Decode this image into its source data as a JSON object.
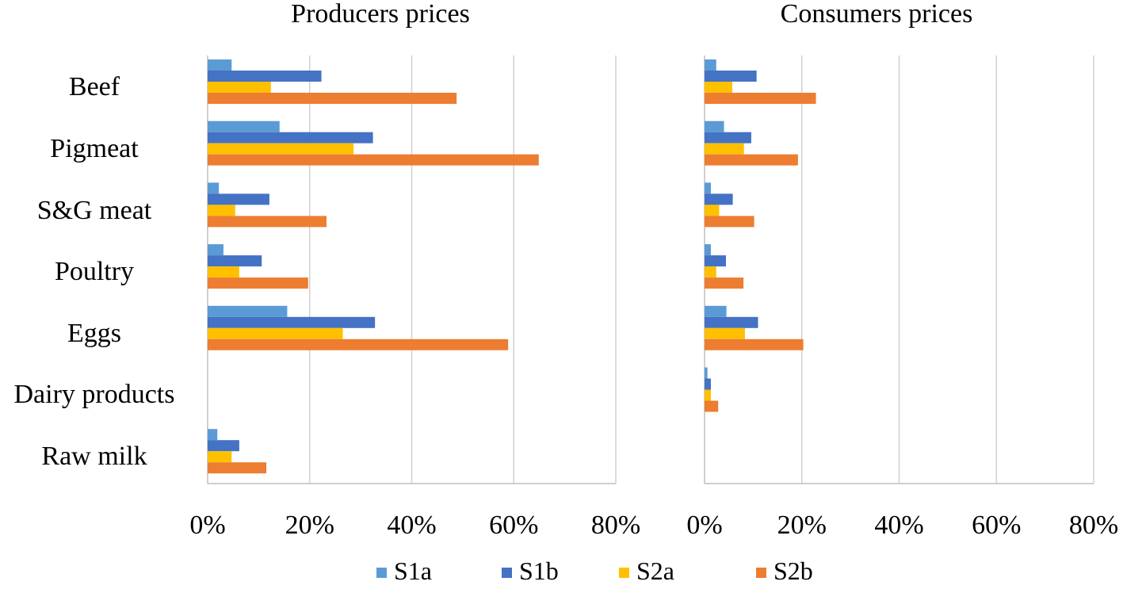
{
  "chart_data": {
    "type": "bar",
    "orientation": "horizontal",
    "categories": [
      "Beef",
      "Pigmeat",
      "S&G meat",
      "Poultry",
      "Eggs",
      "Dairy products",
      "Raw milk"
    ],
    "series_names": [
      "S1a",
      "S1b",
      "S2a",
      "S2b"
    ],
    "colors": {
      "S1a": "#5b9bd5",
      "S1b": "#4472c4",
      "S2a": "#ffc000",
      "S2b": "#ed7d31"
    },
    "xlim": [
      0,
      80
    ],
    "xticks": [
      0,
      20,
      40,
      60,
      80
    ],
    "tick_format": "%",
    "legend_position": "bottom",
    "panels": [
      {
        "title": "Producers prices",
        "series": [
          {
            "name": "S1a",
            "values": [
              4.7,
              14.1,
              2.2,
              3.1,
              15.6,
              0,
              1.9
            ]
          },
          {
            "name": "S1b",
            "values": [
              22.3,
              32.4,
              12.1,
              10.6,
              32.8,
              0,
              6.2
            ]
          },
          {
            "name": "S2a",
            "values": [
              12.4,
              28.6,
              5.4,
              6.2,
              26.5,
              0,
              4.7
            ]
          },
          {
            "name": "S2b",
            "values": [
              48.8,
              64.9,
              23.3,
              19.7,
              58.9,
              0,
              11.5
            ]
          }
        ]
      },
      {
        "title": "Consumers prices",
        "series": [
          {
            "name": "S1a",
            "values": [
              2.4,
              4.0,
              1.3,
              1.3,
              4.5,
              0.6,
              0
            ]
          },
          {
            "name": "S1b",
            "values": [
              10.7,
              9.6,
              5.8,
              4.4,
              11.0,
              1.3,
              0
            ]
          },
          {
            "name": "S2a",
            "values": [
              5.7,
              8.1,
              3.0,
              2.4,
              8.3,
              1.3,
              0
            ]
          },
          {
            "name": "S2b",
            "values": [
              22.9,
              19.2,
              10.2,
              8.0,
              20.3,
              2.8,
              0
            ]
          }
        ]
      }
    ]
  }
}
